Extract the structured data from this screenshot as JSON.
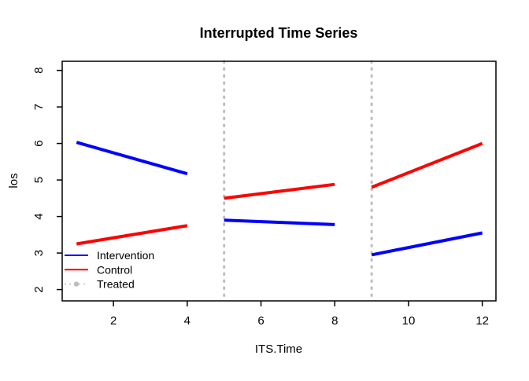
{
  "chart_data": {
    "type": "line",
    "title": "Interrupted Time Series",
    "xlabel": "ITS.Time",
    "ylabel": "los",
    "x_ticks": [
      2,
      4,
      6,
      8,
      10,
      12
    ],
    "y_ticks": [
      2,
      3,
      4,
      5,
      6,
      7,
      8
    ],
    "xlim": [
      0.61,
      12.37
    ],
    "ylim": [
      1.69,
      8.25
    ],
    "grid": false,
    "legend_position": "bottomleft",
    "series": [
      {
        "name": "Intervention",
        "color": "#0000ff",
        "style": "solid",
        "segments": [
          [
            [
              1,
              6.03
            ],
            [
              4,
              5.17
            ]
          ],
          [
            [
              5,
              3.9
            ],
            [
              8,
              3.78
            ]
          ],
          [
            [
              9,
              2.95
            ],
            [
              12,
              3.55
            ]
          ]
        ]
      },
      {
        "name": "Control",
        "color": "#ff0000",
        "style": "solid",
        "segments": [
          [
            [
              1,
              3.25
            ],
            [
              4,
              3.75
            ]
          ],
          [
            [
              5,
              4.5
            ],
            [
              8,
              4.88
            ]
          ],
          [
            [
              9,
              4.8
            ],
            [
              12,
              6.0
            ]
          ]
        ]
      },
      {
        "name": "Treated",
        "color": "#bebebe",
        "style": "dotted",
        "vlines": [
          5,
          9
        ]
      }
    ],
    "legend": [
      {
        "label": "Intervention",
        "color": "#0000ff",
        "style": "solid"
      },
      {
        "label": "Control",
        "color": "#ff0000",
        "style": "solid"
      },
      {
        "label": "Treated",
        "color": "#bebebe",
        "style": "dotted-point"
      }
    ]
  },
  "colors": {
    "axis": "#000000",
    "background": "#ffffff"
  }
}
